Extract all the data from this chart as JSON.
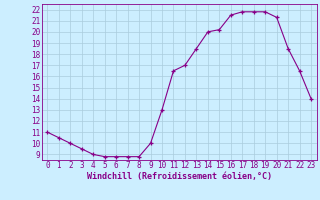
{
  "x": [
    0,
    1,
    2,
    3,
    4,
    5,
    6,
    7,
    8,
    9,
    10,
    11,
    12,
    13,
    14,
    15,
    16,
    17,
    18,
    19,
    20,
    21,
    22,
    23
  ],
  "y": [
    11,
    10.5,
    10,
    9.5,
    9,
    8.8,
    8.8,
    8.8,
    8.8,
    10,
    13,
    16.5,
    17,
    18.5,
    20,
    20.2,
    21.5,
    21.8,
    21.8,
    21.8,
    21.3,
    18.5,
    16.5,
    14
  ],
  "title": "Windchill (Refroidissement éolien,°C)",
  "bg_color": "#cceeff",
  "grid_color": "#aaccdd",
  "line_color": "#880088",
  "ylim": [
    8.5,
    22.5
  ],
  "xlim": [
    -0.5,
    23.5
  ],
  "yticks": [
    9,
    10,
    11,
    12,
    13,
    14,
    15,
    16,
    17,
    18,
    19,
    20,
    21,
    22
  ],
  "xticks": [
    0,
    1,
    2,
    3,
    4,
    5,
    6,
    7,
    8,
    9,
    10,
    11,
    12,
    13,
    14,
    15,
    16,
    17,
    18,
    19,
    20,
    21,
    22,
    23
  ],
  "tick_fontsize": 5.5,
  "xlabel_fontsize": 6.0
}
